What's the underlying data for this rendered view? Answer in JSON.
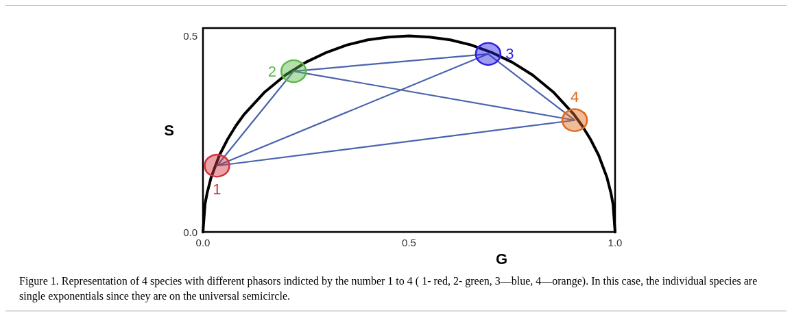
{
  "chart_data": {
    "type": "scatter",
    "xlabel": "G",
    "ylabel": "S",
    "xlim": [
      0,
      1
    ],
    "ylim": [
      0,
      0.52
    ],
    "xticks": [
      {
        "value": 0,
        "label": "0.0"
      },
      {
        "value": 0.5,
        "label": "0.5"
      },
      {
        "value": 1,
        "label": "1.0"
      }
    ],
    "yticks": [
      {
        "value": 0,
        "label": "0.0"
      },
      {
        "value": 0.5,
        "label": "0.5"
      }
    ],
    "grid": false,
    "legend": false,
    "line_style": "solid",
    "series": [
      {
        "type": "line",
        "marker": "none",
        "color": "#000000",
        "x": [
          0,
          0.005,
          0.01,
          0.02,
          0.04,
          0.06,
          0.08,
          0.1,
          0.15,
          0.2,
          0.25,
          0.3,
          0.35,
          0.4,
          0.45,
          0.5,
          0.55,
          0.6,
          0.65,
          0.7,
          0.75,
          0.8,
          0.85,
          0.9,
          0.92,
          0.94,
          0.96,
          0.98,
          0.99,
          0.995,
          1
        ],
        "values": [
          0,
          0.071,
          0.099,
          0.14,
          0.196,
          0.237,
          0.271,
          0.3,
          0.357,
          0.4,
          0.433,
          0.458,
          0.477,
          0.49,
          0.497,
          0.5,
          0.497,
          0.49,
          0.477,
          0.458,
          0.433,
          0.4,
          0.357,
          0.3,
          0.271,
          0.237,
          0.196,
          0.14,
          0.099,
          0.071,
          0
        ]
      },
      {
        "type": "line",
        "marker": "none",
        "color": "#4a63ad",
        "x": [
          0.034,
          0.22,
          0.692,
          0.902,
          0.034,
          0.692,
          null,
          0.22,
          0.902,
          null,
          0.034,
          0.902
        ],
        "values": [
          0.169,
          0.41,
          0.454,
          0.285,
          0.169,
          0.454,
          null,
          0.41,
          0.285,
          null,
          0.169,
          0.285
        ]
      },
      {
        "name": "1",
        "marker": "circle",
        "color": "#d0343c",
        "x": [
          0.034
        ],
        "values": [
          0.169
        ]
      },
      {
        "name": "2",
        "marker": "circle",
        "color": "#5cb84a",
        "x": [
          0.22
        ],
        "values": [
          0.41
        ]
      },
      {
        "name": "3",
        "marker": "circle",
        "color": "#2a1fe0",
        "x": [
          0.692
        ],
        "values": [
          0.454
        ]
      },
      {
        "name": "4",
        "marker": "circle",
        "color": "#e06a1e",
        "x": [
          0.902
        ],
        "values": [
          0.285
        ]
      }
    ],
    "annotations": [
      "Figure 1. Representation of 4 species with different phasors indicted by the number 1 to 4 ( 1- red, 2- green, 3—blue, 4—orange). In this case, the individual species are single exponentials since they are on the universal semicircle."
    ]
  }
}
